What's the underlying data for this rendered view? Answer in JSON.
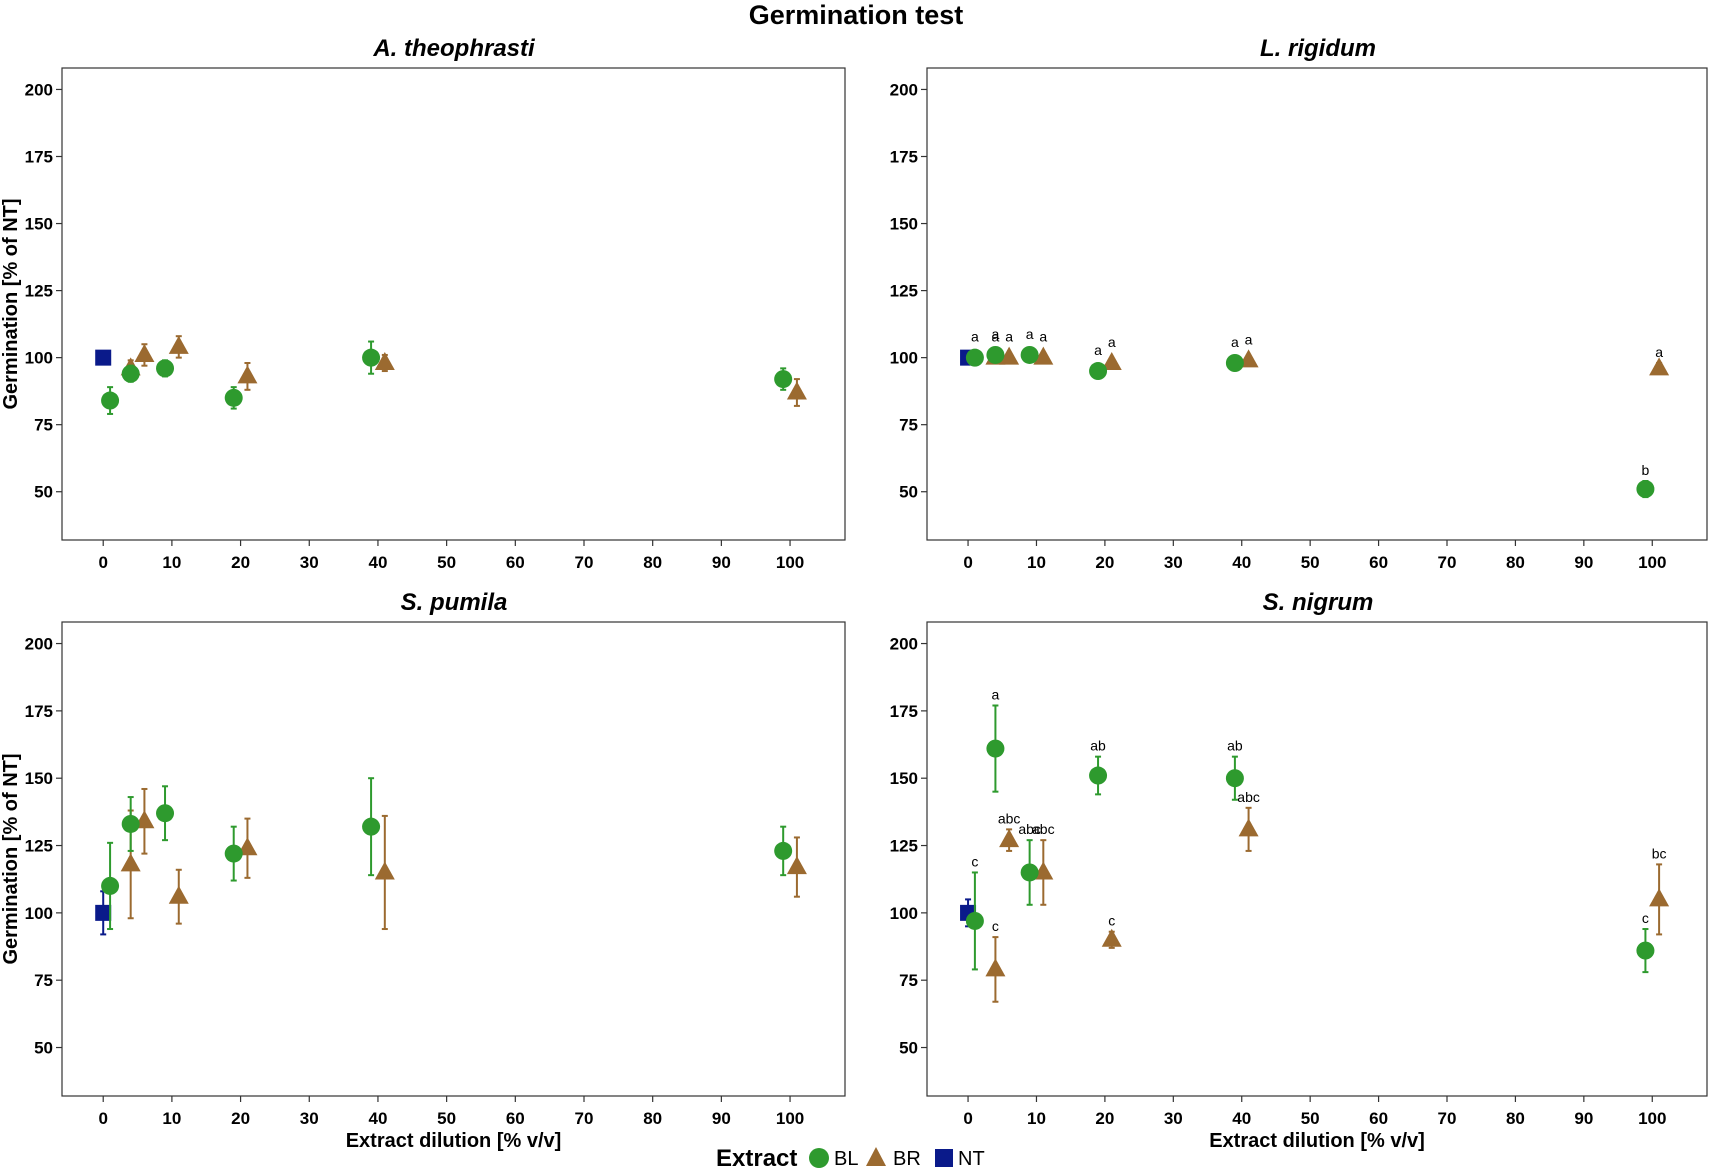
{
  "title": "Germination test",
  "colors": {
    "BL": "#2e9a2e",
    "BR": "#9b6a30",
    "NT": "#0a1a8a"
  },
  "legend": {
    "title": "Extract",
    "entries": [
      "BL",
      "BR",
      "NT"
    ]
  },
  "chart_data": [
    {
      "type": "scatter",
      "title": "A. theophrasti",
      "xlabel": "",
      "ylabel": "Germination [% of NT]",
      "xlim": [
        -6,
        108
      ],
      "ylim": [
        32,
        208
      ],
      "xticks": [
        0,
        10,
        20,
        30,
        40,
        50,
        60,
        70,
        80,
        90,
        100
      ],
      "yticks": [
        50,
        75,
        100,
        125,
        150,
        175,
        200
      ],
      "series": [
        {
          "name": "NT",
          "points": [
            {
              "x": 0,
              "y": 100,
              "err": 0
            }
          ]
        },
        {
          "name": "BL",
          "points": [
            {
              "x": 1,
              "y": 84,
              "err": 5,
              "label": ""
            },
            {
              "x": 4,
              "y": 94,
              "err": 3,
              "label": ""
            },
            {
              "x": 9,
              "y": 96,
              "err": 3,
              "label": ""
            },
            {
              "x": 19,
              "y": 85,
              "err": 4,
              "label": ""
            },
            {
              "x": 39,
              "y": 100,
              "err": 6,
              "label": ""
            },
            {
              "x": 99,
              "y": 92,
              "err": 4,
              "label": ""
            }
          ]
        },
        {
          "name": "BR",
          "points": [
            {
              "x": 4,
              "y": 96,
              "err": 3,
              "label": ""
            },
            {
              "x": 6,
              "y": 101,
              "err": 4,
              "label": ""
            },
            {
              "x": 11,
              "y": 104,
              "err": 4,
              "label": ""
            },
            {
              "x": 21,
              "y": 93,
              "err": 5,
              "label": ""
            },
            {
              "x": 41,
              "y": 98,
              "err": 3,
              "label": ""
            },
            {
              "x": 101,
              "y": 87,
              "err": 5,
              "label": ""
            }
          ]
        }
      ]
    },
    {
      "type": "scatter",
      "title": "L. rigidum",
      "xlabel": "",
      "ylabel": "",
      "xlim": [
        -6,
        108
      ],
      "ylim": [
        32,
        208
      ],
      "xticks": [
        0,
        10,
        20,
        30,
        40,
        50,
        60,
        70,
        80,
        90,
        100
      ],
      "yticks": [
        50,
        75,
        100,
        125,
        150,
        175,
        200
      ],
      "series": [
        {
          "name": "NT",
          "points": [
            {
              "x": 0,
              "y": 100,
              "err": 0
            }
          ]
        },
        {
          "name": "BL",
          "points": [
            {
              "x": 1,
              "y": 100,
              "err": 0,
              "label": "a"
            },
            {
              "x": 4,
              "y": 101,
              "err": 0,
              "label": "a"
            },
            {
              "x": 9,
              "y": 101,
              "err": 0,
              "label": "a"
            },
            {
              "x": 19,
              "y": 95,
              "err": 0,
              "label": "a"
            },
            {
              "x": 39,
              "y": 98,
              "err": 0,
              "label": "a"
            },
            {
              "x": 99,
              "y": 51,
              "err": 3,
              "label": "b"
            }
          ]
        },
        {
          "name": "BR",
          "points": [
            {
              "x": 4,
              "y": 100,
              "err": 0,
              "label": "a"
            },
            {
              "x": 6,
              "y": 100,
              "err": 0,
              "label": "a"
            },
            {
              "x": 11,
              "y": 100,
              "err": 0,
              "label": "a"
            },
            {
              "x": 21,
              "y": 98,
              "err": 0,
              "label": "a"
            },
            {
              "x": 41,
              "y": 99,
              "err": 0,
              "label": "a"
            },
            {
              "x": 101,
              "y": 96,
              "err": 2,
              "label": "a"
            }
          ]
        }
      ]
    },
    {
      "type": "scatter",
      "title": "S. pumila",
      "xlabel": "Extract dilution [% v/v]",
      "ylabel": "Germination [% of NT]",
      "xlim": [
        -6,
        108
      ],
      "ylim": [
        32,
        208
      ],
      "xticks": [
        0,
        10,
        20,
        30,
        40,
        50,
        60,
        70,
        80,
        90,
        100
      ],
      "yticks": [
        50,
        75,
        100,
        125,
        150,
        175,
        200
      ],
      "series": [
        {
          "name": "NT",
          "points": [
            {
              "x": 0,
              "y": 100,
              "err": 8
            }
          ]
        },
        {
          "name": "BL",
          "points": [
            {
              "x": 1,
              "y": 110,
              "err": 16,
              "label": ""
            },
            {
              "x": 4,
              "y": 133,
              "err": 10,
              "label": ""
            },
            {
              "x": 9,
              "y": 137,
              "err": 10,
              "label": ""
            },
            {
              "x": 19,
              "y": 122,
              "err": 10,
              "label": ""
            },
            {
              "x": 39,
              "y": 132,
              "err": 18,
              "label": ""
            },
            {
              "x": 99,
              "y": 123,
              "err": 9,
              "label": ""
            }
          ]
        },
        {
          "name": "BR",
          "points": [
            {
              "x": 4,
              "y": 118,
              "err": 20,
              "label": ""
            },
            {
              "x": 6,
              "y": 134,
              "err": 12,
              "label": ""
            },
            {
              "x": 11,
              "y": 106,
              "err": 10,
              "label": ""
            },
            {
              "x": 21,
              "y": 124,
              "err": 11,
              "label": ""
            },
            {
              "x": 41,
              "y": 115,
              "err": 21,
              "label": ""
            },
            {
              "x": 101,
              "y": 117,
              "err": 11,
              "label": ""
            }
          ]
        }
      ]
    },
    {
      "type": "scatter",
      "title": "S. nigrum",
      "xlabel": "Extract dilution [% v/v]",
      "ylabel": "",
      "xlim": [
        -6,
        108
      ],
      "ylim": [
        32,
        208
      ],
      "xticks": [
        0,
        10,
        20,
        30,
        40,
        50,
        60,
        70,
        80,
        90,
        100
      ],
      "yticks": [
        50,
        75,
        100,
        125,
        150,
        175,
        200
      ],
      "series": [
        {
          "name": "NT",
          "points": [
            {
              "x": 0,
              "y": 100,
              "err": 5
            }
          ]
        },
        {
          "name": "BL",
          "points": [
            {
              "x": 1,
              "y": 97,
              "err": 18,
              "label": "c"
            },
            {
              "x": 4,
              "y": 161,
              "err": 16,
              "label": "a"
            },
            {
              "x": 9,
              "y": 115,
              "err": 12,
              "label": "abc"
            },
            {
              "x": 19,
              "y": 151,
              "err": 7,
              "label": "ab"
            },
            {
              "x": 39,
              "y": 150,
              "err": 8,
              "label": "ab"
            },
            {
              "x": 99,
              "y": 86,
              "err": 8,
              "label": "c"
            }
          ]
        },
        {
          "name": "BR",
          "points": [
            {
              "x": 4,
              "y": 79,
              "err": 12,
              "label": "c"
            },
            {
              "x": 6,
              "y": 127,
              "err": 4,
              "label": "abc"
            },
            {
              "x": 11,
              "y": 115,
              "err": 12,
              "label": "abc"
            },
            {
              "x": 21,
              "y": 90,
              "err": 3,
              "label": "c"
            },
            {
              "x": 41,
              "y": 131,
              "err": 8,
              "label": "abc"
            },
            {
              "x": 101,
              "y": 105,
              "err": 13,
              "label": "bc"
            }
          ]
        }
      ]
    }
  ]
}
